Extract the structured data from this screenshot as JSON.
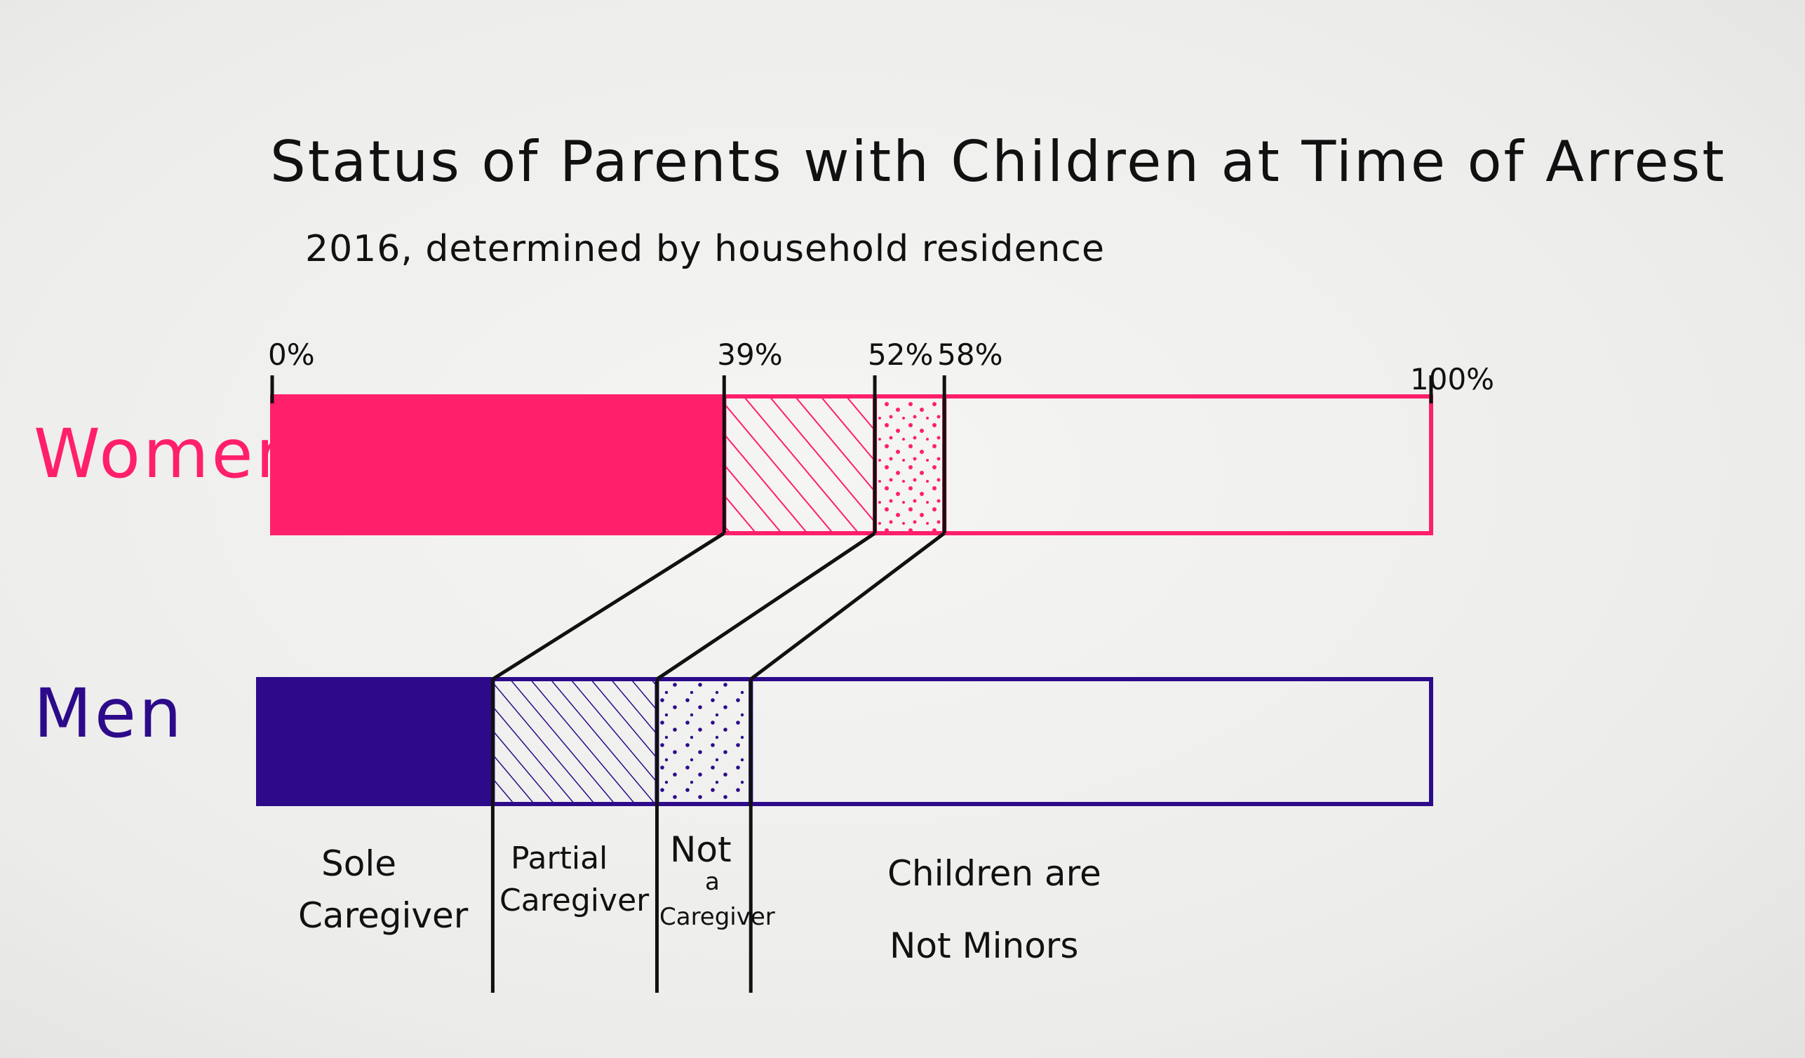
{
  "chart_data": {
    "type": "bar",
    "orientation": "horizontal-stacked",
    "title": "Status of Parents with Children at Time of Arrest",
    "subtitle": "2016, determined by household residence",
    "xlim": [
      0,
      100
    ],
    "tick_labels": [
      "0%",
      "39%",
      "52%",
      "58%",
      "100%"
    ],
    "tick_values": [
      0,
      39,
      52,
      58,
      100
    ],
    "rows": [
      {
        "name": "Women",
        "color": "#ff1f6b",
        "boundaries": [
          0,
          39,
          52,
          58,
          100
        ],
        "segments": [
          {
            "category": "Sole Caregiver",
            "value": 39,
            "fill": "solid"
          },
          {
            "category": "Partial Caregiver",
            "value": 13,
            "fill": "hatched"
          },
          {
            "category": "Not a Caregiver",
            "value": 6,
            "fill": "dotted"
          },
          {
            "category": "Children are Not Minors",
            "value": 42,
            "fill": "empty"
          }
        ]
      },
      {
        "name": "Men",
        "color": "#2d0a8a",
        "boundaries": [
          0,
          20,
          34,
          42,
          100
        ],
        "segments": [
          {
            "category": "Sole Caregiver",
            "value": 20,
            "fill": "solid"
          },
          {
            "category": "Partial Caregiver",
            "value": 14,
            "fill": "hatched"
          },
          {
            "category": "Not a Caregiver",
            "value": 8,
            "fill": "dotted"
          },
          {
            "category": "Children are Not Minors",
            "value": 58,
            "fill": "empty"
          }
        ]
      }
    ],
    "categories": [
      {
        "label_lines": [
          "Sole",
          "Caregiver"
        ]
      },
      {
        "label_lines": [
          "Partial",
          "Caregiver"
        ]
      },
      {
        "label_lines": [
          "Not",
          "a",
          "Caregiver"
        ]
      },
      {
        "label_lines": [
          "Children are",
          "Not Minors"
        ]
      }
    ],
    "grid": false,
    "legend": "labels-below-bars"
  }
}
